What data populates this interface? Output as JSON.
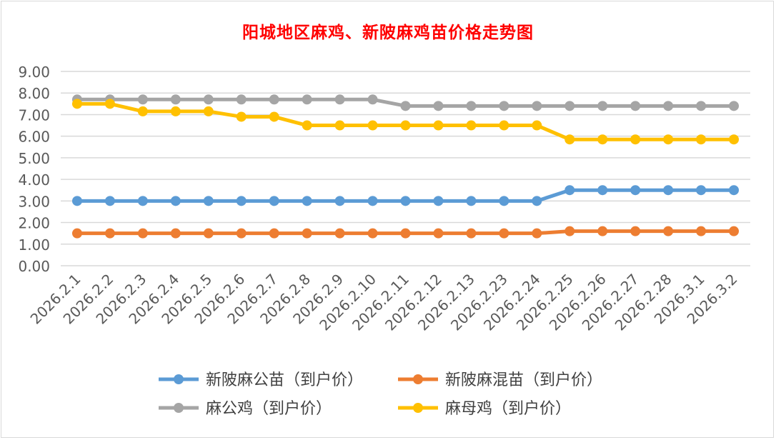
{
  "chart_data": {
    "type": "line",
    "title": "阳城地区麻鸡、新陂麻鸡苗价格走势图",
    "categories": [
      "2026.2.1",
      "2026.2.2",
      "2026.2.3",
      "2026.2.4",
      "2026.2.5",
      "2026.2.6",
      "2026.2.7",
      "2026.2.8",
      "2026.2.9",
      "2026.2.10",
      "2026.2.11",
      "2026.2.12",
      "2026.2.13",
      "2026.2.23",
      "2026.2.24",
      "2026.2.25",
      "2026.2.26",
      "2026.2.27",
      "2026.2.28",
      "2026.3.1",
      "2026.3.2"
    ],
    "y_ticks": [
      "0.00",
      "1.00",
      "2.00",
      "3.00",
      "4.00",
      "5.00",
      "6.00",
      "7.00",
      "8.00",
      "9.00"
    ],
    "ylim": [
      0,
      9
    ],
    "grid": true,
    "legend_position": "bottom",
    "series": [
      {
        "name": "新陂麻公苗（到户价）",
        "color": "#5b9bd5",
        "values": [
          3.0,
          3.0,
          3.0,
          3.0,
          3.0,
          3.0,
          3.0,
          3.0,
          3.0,
          3.0,
          3.0,
          3.0,
          3.0,
          3.0,
          3.0,
          3.5,
          3.5,
          3.5,
          3.5,
          3.5,
          3.5
        ]
      },
      {
        "name": "新陂麻混苗（到户价）",
        "color": "#ed7d31",
        "values": [
          1.5,
          1.5,
          1.5,
          1.5,
          1.5,
          1.5,
          1.5,
          1.5,
          1.5,
          1.5,
          1.5,
          1.5,
          1.5,
          1.5,
          1.5,
          1.6,
          1.6,
          1.6,
          1.6,
          1.6,
          1.6
        ]
      },
      {
        "name": "麻公鸡（到户价）",
        "color": "#a5a5a5",
        "values": [
          7.7,
          7.7,
          7.7,
          7.7,
          7.7,
          7.7,
          7.7,
          7.7,
          7.7,
          7.7,
          7.4,
          7.4,
          7.4,
          7.4,
          7.4,
          7.4,
          7.4,
          7.4,
          7.4,
          7.4,
          7.4
        ]
      },
      {
        "name": "麻母鸡（到户价）",
        "color": "#ffc000",
        "values": [
          7.5,
          7.5,
          7.15,
          7.15,
          7.15,
          6.9,
          6.9,
          6.5,
          6.5,
          6.5,
          6.5,
          6.5,
          6.5,
          6.5,
          6.5,
          5.85,
          5.85,
          5.85,
          5.85,
          5.85,
          5.85
        ]
      }
    ]
  }
}
